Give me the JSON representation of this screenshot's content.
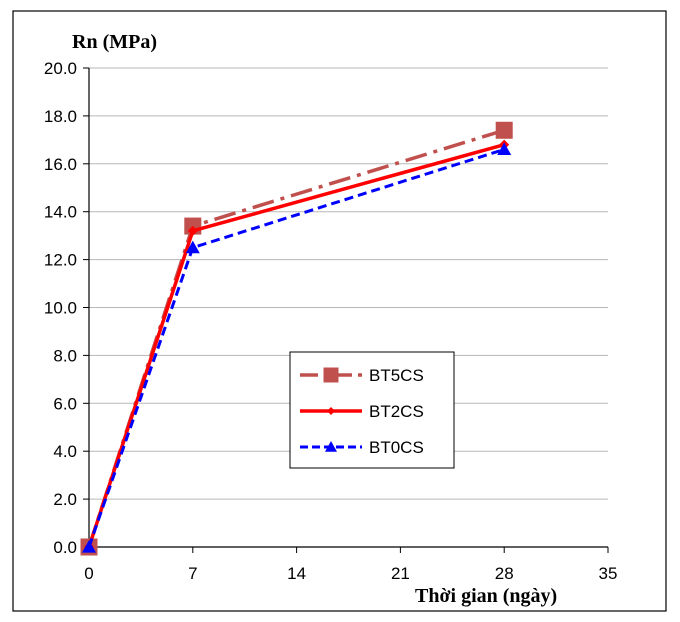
{
  "chart_data": {
    "type": "line",
    "title": "",
    "ylabel": "Rn (MPa)",
    "xlabel": "Thời gian (ngày)",
    "x": [
      0,
      7,
      28
    ],
    "xlim": [
      0,
      35
    ],
    "ylim": [
      0,
      20
    ],
    "xticks": [
      "0",
      "7",
      "14",
      "21",
      "28",
      "35"
    ],
    "yticks": [
      "0.0",
      "2.0",
      "4.0",
      "6.0",
      "8.0",
      "10.0",
      "12.0",
      "14.0",
      "16.0",
      "18.0",
      "20.0"
    ],
    "grid": "horizontal",
    "legend_position": "center-right",
    "series": [
      {
        "name": "BT5CS",
        "values": [
          0,
          13.4,
          17.4
        ],
        "color": "#C0504D",
        "dash": "dash-dot",
        "marker": "square"
      },
      {
        "name": "BT2CS",
        "values": [
          0,
          13.2,
          16.8
        ],
        "color": "#FF0000",
        "dash": "solid",
        "marker": "diamond"
      },
      {
        "name": "BT0CS",
        "values": [
          0,
          12.5,
          16.6
        ],
        "color": "#0000FF",
        "dash": "dashed",
        "marker": "triangle"
      }
    ]
  }
}
